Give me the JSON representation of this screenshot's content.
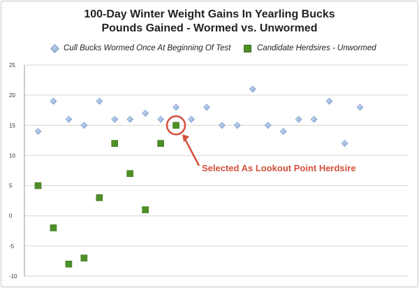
{
  "chart_data": {
    "type": "scatter",
    "title": "100-Day Winter Weight Gains In Yearling Bucks",
    "subtitle": "Pounds Gained - Wormed vs. Unwormed",
    "xlabel": "",
    "ylabel": "",
    "ylim": [
      -10,
      25
    ],
    "yticks": [
      -10,
      -5,
      0,
      5,
      10,
      15,
      20,
      25
    ],
    "xlim": [
      0,
      22
    ],
    "grid": true,
    "legend_position": "top",
    "series": [
      {
        "name": "Cull Bucks Wormed Once At Beginning Of Test",
        "marker": "diamond",
        "color": "#9cb6de",
        "x": [
          1,
          2,
          3,
          4,
          5,
          6,
          7,
          8,
          9,
          10,
          11,
          12,
          13,
          14,
          15,
          16,
          17,
          18,
          19,
          20,
          21,
          22
        ],
        "y": [
          14,
          19,
          16,
          15,
          19,
          16,
          16,
          17,
          16,
          18,
          16,
          18,
          15,
          15,
          21,
          15,
          14,
          16,
          16,
          19,
          12,
          18
        ]
      },
      {
        "name": "Candidate Herdsires - Unwormed",
        "marker": "square",
        "color": "#4e8f27",
        "x": [
          1,
          2,
          3,
          4,
          5,
          6,
          7,
          8,
          9,
          10
        ],
        "y": [
          5,
          -2,
          -8,
          -7,
          3,
          12,
          7,
          1,
          12,
          15
        ]
      }
    ],
    "annotations": [
      {
        "text": "Selected As Lookout Point Herdsire",
        "x": 10,
        "y": 15,
        "color": "#d3503b"
      }
    ]
  }
}
